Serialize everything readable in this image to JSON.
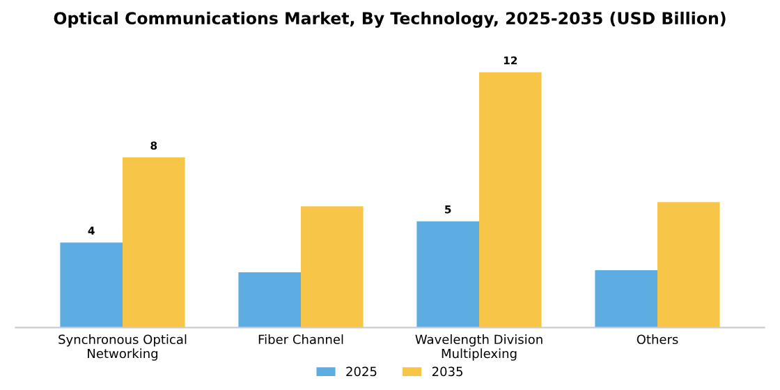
{
  "chart_data": {
    "type": "bar",
    "title": "Optical Communications Market, By Technology, 2025-2035 (USD Billion)",
    "categories": [
      "Synchronous Optical\nNetworking",
      "Fiber Channel",
      "Wavelength Division\nMultiplexing",
      "Others"
    ],
    "series": [
      {
        "name": "2025",
        "color": "#5dade2",
        "values": [
          4,
          2.6,
          5,
          2.7
        ],
        "value_labels": [
          "4",
          null,
          "5",
          null
        ]
      },
      {
        "name": "2035",
        "color": "#f7c548",
        "values": [
          8,
          5.7,
          12,
          5.9
        ],
        "value_labels": [
          "8",
          null,
          "12",
          null
        ]
      }
    ],
    "legend": "bottom",
    "grid": false
  }
}
